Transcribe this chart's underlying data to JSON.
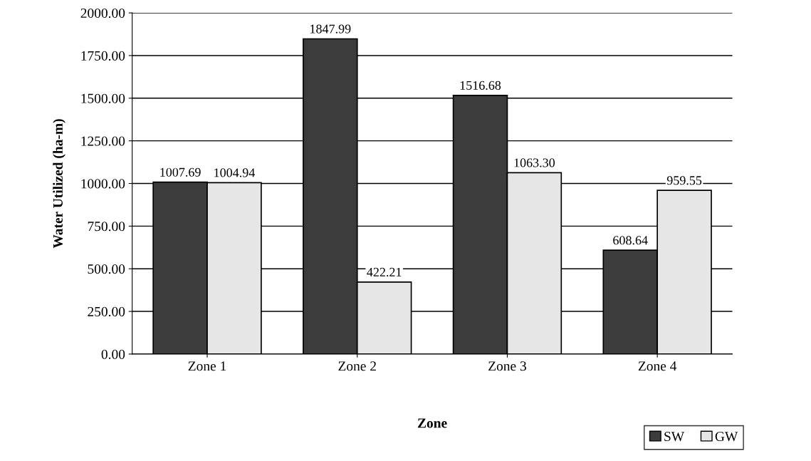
{
  "chart_data": {
    "type": "bar",
    "xlabel": "Zone",
    "ylabel": "Water Utilized (ha-m)",
    "categories": [
      "Zone 1",
      "Zone 2",
      "Zone 3",
      "Zone 4"
    ],
    "series": [
      {
        "name": "SW",
        "color": "#3c3c3c",
        "values": [
          1007.69,
          1847.99,
          1516.68,
          608.64
        ]
      },
      {
        "name": "GW",
        "color": "#e6e6e6",
        "values": [
          1004.94,
          422.21,
          1063.3,
          959.55
        ]
      }
    ],
    "value_labels": [
      [
        "1007.69",
        "1847.99",
        "1516.68",
        "608.64"
      ],
      [
        "1004.94",
        "422.21",
        "1063.30",
        "959.55"
      ]
    ],
    "ylim": [
      0,
      2000
    ],
    "yticks": [
      {
        "value": 0,
        "label": "0.00"
      },
      {
        "value": 250,
        "label": "250.00"
      },
      {
        "value": 500,
        "label": "500.00"
      },
      {
        "value": 750,
        "label": "750.00"
      },
      {
        "value": 1000,
        "label": "1000.00"
      },
      {
        "value": 1250,
        "label": "1250.00"
      },
      {
        "value": 1500,
        "label": "1500.00"
      },
      {
        "value": 1750,
        "label": "1750.00"
      },
      {
        "value": 2000,
        "label": "2000.00"
      }
    ],
    "grid": "y",
    "legend": "bottom right"
  }
}
